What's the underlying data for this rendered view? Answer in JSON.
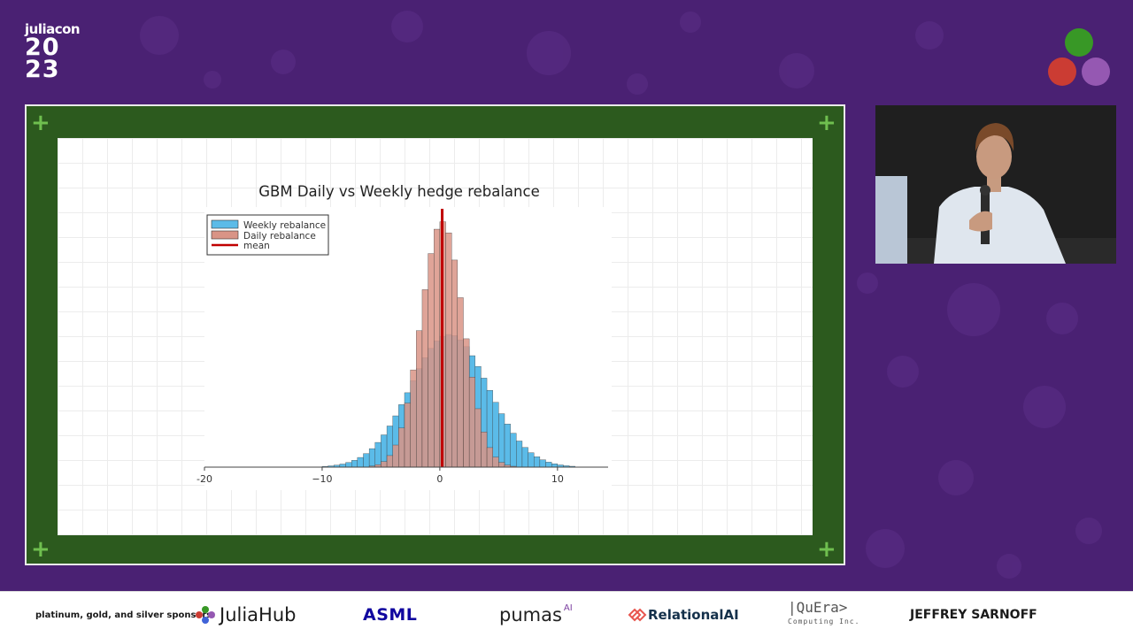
{
  "event": {
    "logo_word": "juliacon",
    "logo_year_top": "20",
    "logo_year_bottom": "23"
  },
  "colors": {
    "background": "#4a2173",
    "frame": "#2c5a1e",
    "plus": "#6fbf4f",
    "weekly": "#5bbbe8",
    "daily": "#d99486",
    "mean": "#c00000",
    "julia_green": "#389826",
    "julia_red": "#cb3c33",
    "julia_purple": "#9558b2"
  },
  "chart_data": {
    "type": "bar",
    "title": "GBM Daily vs Weekly hedge rebalance",
    "xlabel": "",
    "ylabel": "",
    "xlim": [
      -20,
      14.3
    ],
    "xticks": [
      -20,
      -10,
      0,
      10
    ],
    "xtick_labels": [
      "-20",
      "−10",
      "0",
      "10"
    ],
    "bin_width": 0.5,
    "legend_position": "top-left",
    "grid": false,
    "series": [
      {
        "name": "Weekly rebalance",
        "color_key": "weekly",
        "distribution": "normal",
        "mean": 0.8,
        "sd": 3.3,
        "peak": 1.0
      },
      {
        "name": "Daily rebalance",
        "color_key": "daily",
        "distribution": "normal",
        "mean": 0.2,
        "sd": 1.8,
        "peak": 1.85
      }
    ],
    "mean_line": {
      "name": "mean",
      "x": 0.2
    }
  },
  "video": {
    "label": "speaker camera"
  },
  "sponsors": {
    "label": "platinum, gold, and silver sponsors:",
    "juliahub": "JuliaHub",
    "asml": "ASML",
    "pumas": "pumas",
    "pumas_sup": "AI",
    "relationalai": "RelationalAI",
    "quera": "|QuEra>",
    "quera_sub": "Computing Inc.",
    "sarnoff": "JEFFREY SARNOFF"
  }
}
